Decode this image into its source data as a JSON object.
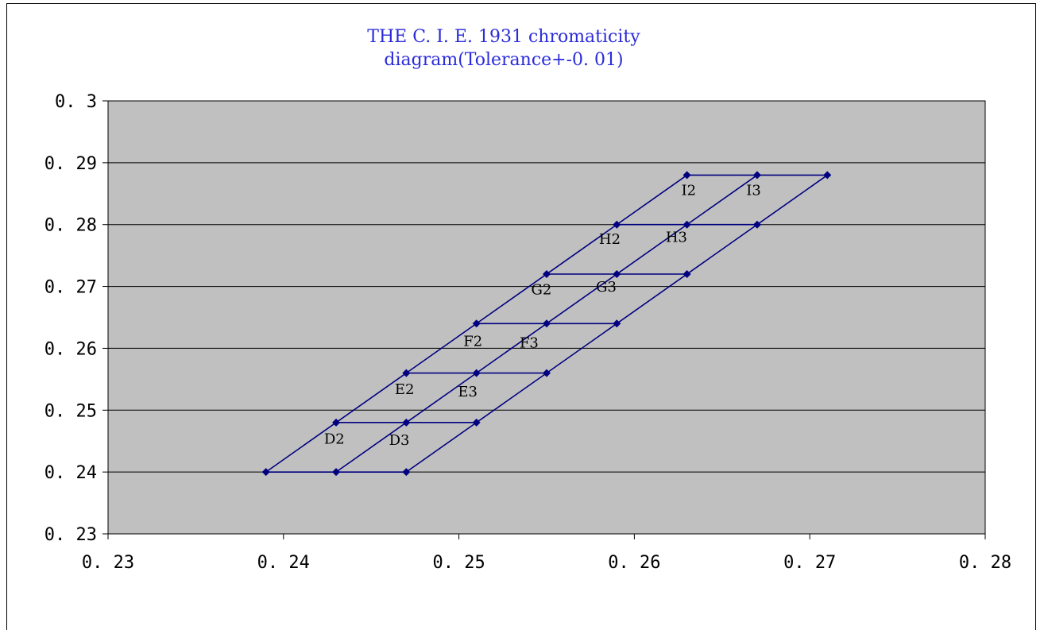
{
  "chart_data": {
    "type": "line",
    "title_lines": [
      "THE C. I. E. 1931 chromaticity",
      "diagram(Tolerance+-0. 01)"
    ],
    "xlabel": "",
    "ylabel": "",
    "xlim": [
      0.23,
      0.28
    ],
    "ylim": [
      0.23,
      0.3
    ],
    "x_ticks": [
      0.23,
      0.24,
      0.25,
      0.26,
      0.27,
      0.28
    ],
    "x_tick_labels": [
      "0. 23",
      "0. 24",
      "0. 25",
      "0. 26",
      "0. 27",
      "0. 28"
    ],
    "y_ticks": [
      0.23,
      0.24,
      0.25,
      0.26,
      0.27,
      0.28,
      0.29,
      0.3
    ],
    "y_tick_labels": [
      "0. 23",
      "0. 24",
      "0. 25",
      "0. 26",
      "0. 27",
      "0. 28",
      "0. 29",
      "0. 3"
    ],
    "grid": "horizontal",
    "plot_background": "#c0c0c0",
    "series_color": "#000080",
    "series": [
      {
        "points": [
          [
            0.239,
            0.24
          ],
          [
            0.263,
            0.288
          ]
        ]
      },
      {
        "points": [
          [
            0.243,
            0.24
          ],
          [
            0.267,
            0.288
          ]
        ]
      },
      {
        "points": [
          [
            0.247,
            0.24
          ],
          [
            0.271,
            0.288
          ]
        ]
      },
      {
        "points": [
          [
            0.239,
            0.24
          ],
          [
            0.243,
            0.24
          ],
          [
            0.247,
            0.24
          ]
        ]
      },
      {
        "points": [
          [
            0.243,
            0.248
          ],
          [
            0.247,
            0.248
          ],
          [
            0.251,
            0.248
          ]
        ]
      },
      {
        "points": [
          [
            0.247,
            0.256
          ],
          [
            0.251,
            0.256
          ],
          [
            0.255,
            0.256
          ]
        ]
      },
      {
        "points": [
          [
            0.251,
            0.264
          ],
          [
            0.255,
            0.264
          ],
          [
            0.259,
            0.264
          ]
        ]
      },
      {
        "points": [
          [
            0.255,
            0.272
          ],
          [
            0.259,
            0.272
          ],
          [
            0.263,
            0.272
          ]
        ]
      },
      {
        "points": [
          [
            0.259,
            0.28
          ],
          [
            0.263,
            0.28
          ],
          [
            0.267,
            0.28
          ]
        ]
      },
      {
        "points": [
          [
            0.263,
            0.288
          ],
          [
            0.267,
            0.288
          ],
          [
            0.271,
            0.288
          ]
        ]
      }
    ],
    "annotations": [
      {
        "text": "D2",
        "x": 0.2429,
        "y": 0.2446
      },
      {
        "text": "D3",
        "x": 0.2466,
        "y": 0.2444
      },
      {
        "text": "E2",
        "x": 0.2469,
        "y": 0.2526
      },
      {
        "text": "E3",
        "x": 0.2505,
        "y": 0.2522
      },
      {
        "text": "F2",
        "x": 0.2508,
        "y": 0.2604
      },
      {
        "text": "F3",
        "x": 0.254,
        "y": 0.2601
      },
      {
        "text": "G2",
        "x": 0.2547,
        "y": 0.2687
      },
      {
        "text": "G3",
        "x": 0.2584,
        "y": 0.2692
      },
      {
        "text": "H2",
        "x": 0.2586,
        "y": 0.2769
      },
      {
        "text": "H3",
        "x": 0.2624,
        "y": 0.2772
      },
      {
        "text": "I2",
        "x": 0.2631,
        "y": 0.2848
      },
      {
        "text": "I3",
        "x": 0.2668,
        "y": 0.2848
      }
    ]
  }
}
